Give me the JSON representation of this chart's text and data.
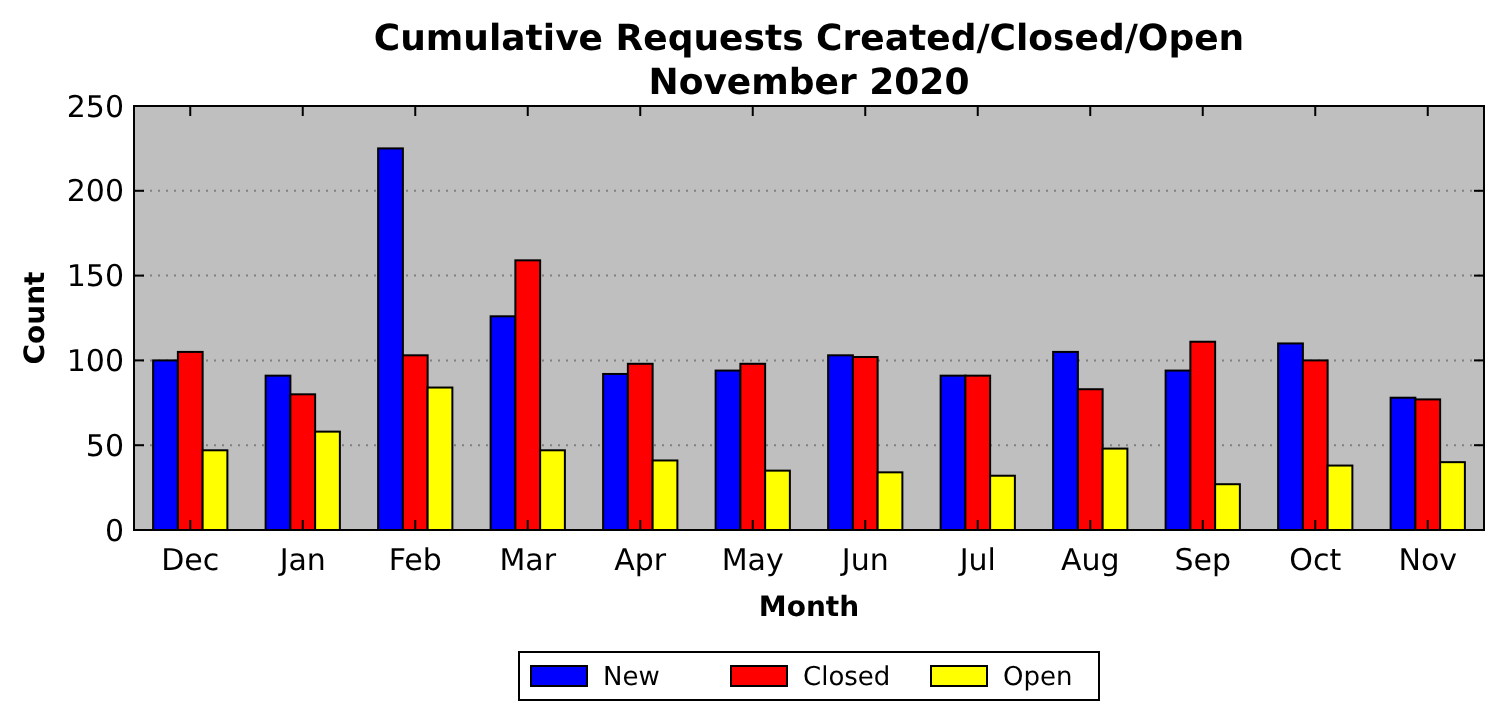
{
  "chart_data": {
    "type": "bar",
    "title": "Cumulative Requests Created/Closed/Open\nNovember 2020",
    "xlabel": "Month",
    "ylabel": "Count",
    "categories": [
      "Dec",
      "Jan",
      "Feb",
      "Mar",
      "Apr",
      "May",
      "Jun",
      "Jul",
      "Aug",
      "Sep",
      "Oct",
      "Nov"
    ],
    "series": [
      {
        "name": "New",
        "color": "#0000ff",
        "values": [
          100,
          91,
          225,
          126,
          92,
          94,
          103,
          91,
          105,
          94,
          110,
          78
        ]
      },
      {
        "name": "Closed",
        "color": "#ff0000",
        "values": [
          105,
          80,
          103,
          159,
          98,
          98,
          102,
          91,
          83,
          111,
          100,
          77
        ]
      },
      {
        "name": "Open",
        "color": "#ffff00",
        "values": [
          47,
          58,
          84,
          47,
          41,
          35,
          34,
          32,
          48,
          27,
          38,
          40
        ]
      }
    ],
    "ylim": [
      0,
      250
    ],
    "yticks": [
      0,
      50,
      100,
      150,
      200,
      250
    ],
    "grid": "y",
    "legend": "bottom"
  }
}
